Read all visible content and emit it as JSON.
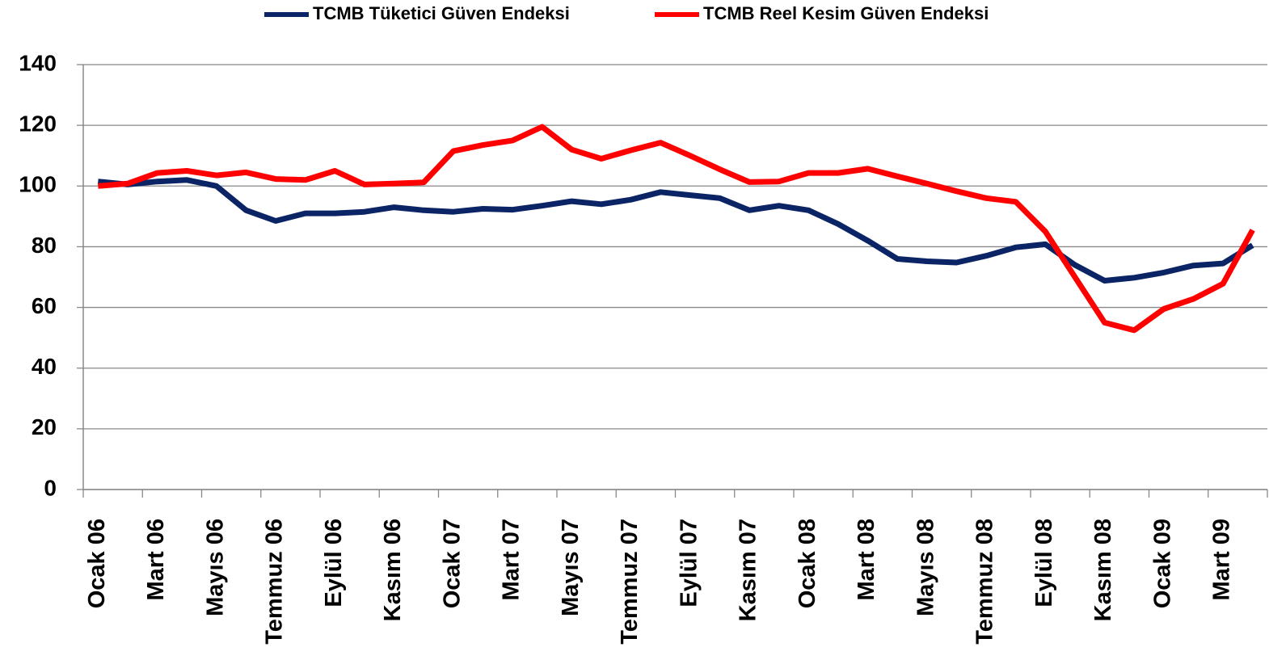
{
  "chart_data": {
    "type": "line",
    "categories": [
      "Ocak 06",
      null,
      "Mart 06",
      null,
      "Mayıs 06",
      null,
      "Temmuz 06",
      null,
      "Eylül 06",
      null,
      "Kasım 06",
      null,
      "Ocak 07",
      null,
      "Mart 07",
      null,
      "Mayıs 07",
      null,
      "Temmuz 07",
      null,
      "Eylül 07",
      null,
      "Kasım 07",
      null,
      "Ocak 08",
      null,
      "Mart 08",
      null,
      "Mayıs 08",
      null,
      "Temmuz 08",
      null,
      "Eylül 08",
      null,
      "Kasım 08",
      null,
      "Ocak 09",
      null,
      "Mart 09",
      null
    ],
    "series": [
      {
        "name": "TCMB Tüketici Güven Endeksi",
        "color": "#0b2465",
        "values": [
          101.5,
          100.5,
          101.5,
          102,
          100,
          92,
          88.5,
          91,
          91,
          91.5,
          93,
          92,
          91.5,
          92.5,
          92.2,
          93.5,
          95,
          94,
          95.5,
          98,
          97,
          96,
          92,
          93.5,
          92,
          87.5,
          82,
          76,
          75.2,
          74.8,
          77,
          79.8,
          80.8,
          74,
          68.8,
          69.8,
          71.5,
          73.8,
          74.5,
          80.5
        ]
      },
      {
        "name": "TCMB Reel Kesim Güven Endeksi",
        "color": "#ff0000",
        "values": [
          100,
          100.8,
          104.3,
          105,
          103.5,
          104.5,
          102.3,
          102,
          105,
          100.5,
          100.8,
          101.2,
          111.5,
          113.5,
          115,
          119.5,
          112,
          109,
          111.8,
          114.3,
          110,
          105.5,
          101.3,
          101.5,
          104.3,
          104.3,
          105.7,
          103.2,
          100.8,
          98.3,
          96,
          94.8,
          85,
          70,
          55,
          52.5,
          59.5,
          62.8,
          67.8,
          85.5
        ]
      }
    ],
    "ylim": [
      0,
      140
    ],
    "yticks": [
      0,
      20,
      40,
      60,
      80,
      100,
      120,
      140
    ],
    "grid": true,
    "legend": "top"
  }
}
